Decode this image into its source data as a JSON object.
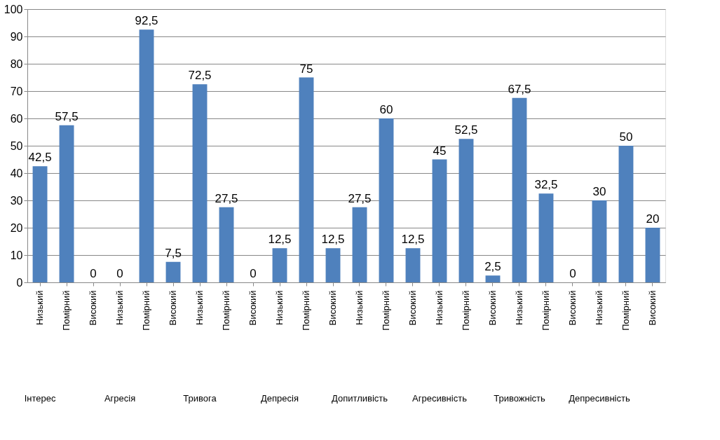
{
  "chart_data": {
    "type": "bar",
    "categories": [
      "Низький",
      "Помірний",
      "Високий",
      "Низький",
      "Помірний",
      "Високий",
      "Низький",
      "Помірний",
      "Високий",
      "Низький",
      "Помірний",
      "Високий",
      "Низький",
      "Помірний",
      "Високий",
      "Низький",
      "Помірний",
      "Високий",
      "Низький",
      "Помірний",
      "Високий",
      "Низький",
      "Помірний",
      "Високий"
    ],
    "values": [
      42.5,
      57.5,
      0,
      0,
      92.5,
      7.5,
      72.5,
      27.5,
      0,
      12.5,
      75,
      12.5,
      27.5,
      60,
      12.5,
      45,
      52.5,
      2.5,
      67.5,
      32.5,
      0,
      30,
      50,
      20
    ],
    "value_labels": [
      "42,5",
      "57,5",
      "0",
      "0",
      "92,5",
      "7,5",
      "72,5",
      "27,5",
      "0",
      "12,5",
      "75",
      "12,5",
      "27,5",
      "60",
      "12,5",
      "45",
      "52,5",
      "2,5",
      "67,5",
      "32,5",
      "0",
      "30",
      "50",
      "20"
    ],
    "color": "#4f81bd",
    "ylim": [
      0,
      100
    ],
    "yticks": [
      0,
      10,
      20,
      30,
      40,
      50,
      60,
      70,
      80,
      90,
      100
    ],
    "grid": "y",
    "annotations": [
      "Інтерес",
      "Агресія",
      "Тривога",
      "Депресія",
      "Допитливість",
      "Агресивність",
      "Тривожність",
      "Депресивність"
    ]
  }
}
